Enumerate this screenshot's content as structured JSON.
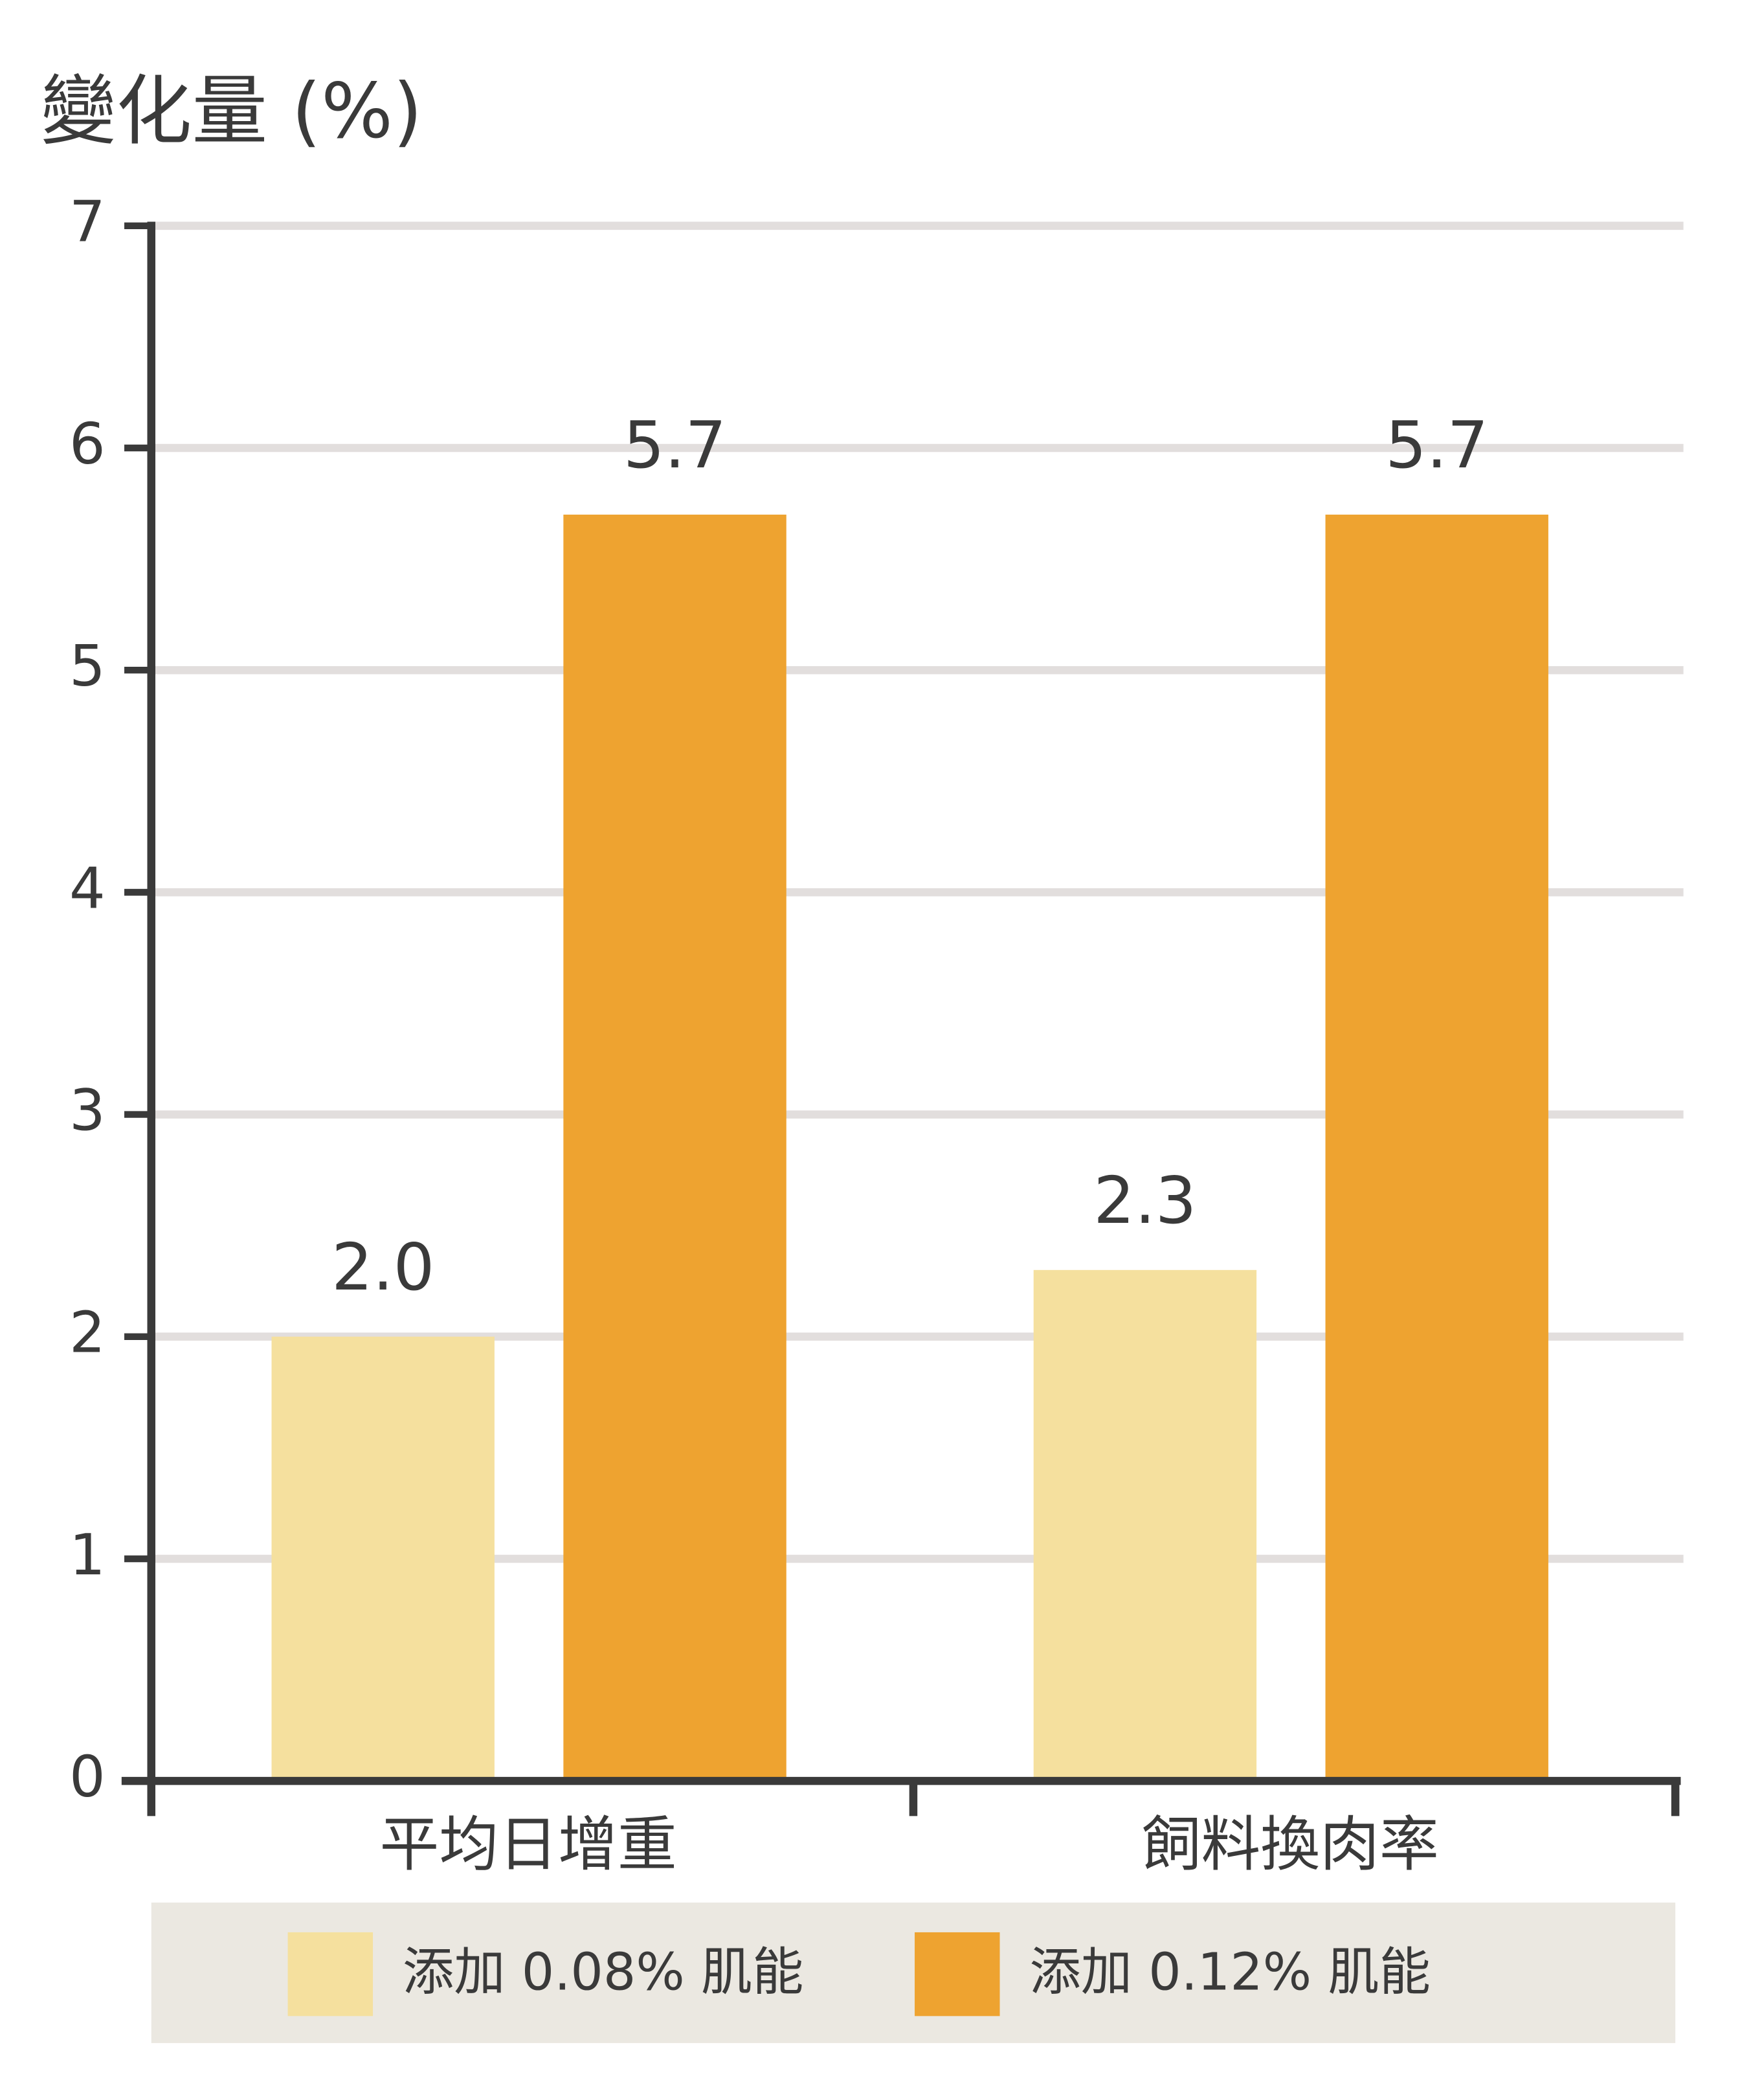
{
  "chart_data": {
    "type": "bar",
    "y_label": "變化量 (%)",
    "categories": [
      "平均日增重",
      "飼料換肉率"
    ],
    "series": [
      {
        "name": "添加 0.08% 肌能",
        "color": "#f5e09e",
        "values": [
          2.0,
          2.3
        ],
        "value_labels": [
          "2.0",
          "2.3"
        ]
      },
      {
        "name": "添加 0.12% 肌能",
        "color": "#eea330",
        "values": [
          5.7,
          5.7
        ]
      }
    ],
    "ylim": [
      0,
      7
    ],
    "yticks": [
      0,
      1,
      2,
      3,
      4,
      5,
      6,
      7
    ],
    "grid": true,
    "legend": "bottom"
  }
}
